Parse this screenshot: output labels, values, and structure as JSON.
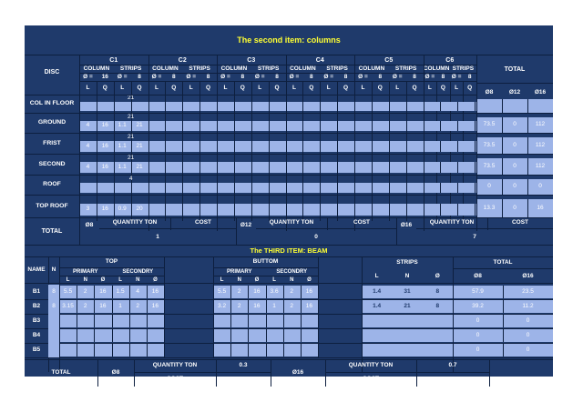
{
  "section1": {
    "title": "The second  item: columns",
    "disc_label": "DISC",
    "total_label": "TOTAL",
    "col_groups": [
      "C1",
      "C2",
      "C3",
      "C4",
      "C5",
      "C6"
    ],
    "column_label": "COLUMN",
    "strips_label": "STRIPS",
    "dia_label": "Ø =",
    "dia_values": [
      [
        "16",
        "8"
      ],
      [
        "8",
        "8"
      ],
      [
        "8",
        "8"
      ],
      [
        "8",
        "8"
      ],
      [
        "8",
        "8"
      ],
      [
        "8",
        "8"
      ]
    ],
    "lq_labels": [
      "L",
      "Q",
      "L",
      "Q"
    ],
    "total_headers": [
      "Ø8",
      "Ø12",
      "Ø16"
    ],
    "rows": [
      {
        "label": "COL IN FLOOR",
        "above": "21",
        "cells": [
          "",
          "",
          "",
          ""
        ],
        "totals": [
          "",
          "",
          ""
        ]
      },
      {
        "label": "GROUND",
        "above": "21",
        "cells": [
          "4",
          "16",
          "1.1",
          "21"
        ],
        "totals": [
          "73.5",
          "0",
          "112"
        ]
      },
      {
        "label": "FRIST",
        "above": "21",
        "cells": [
          "4",
          "16",
          "1.1",
          "21"
        ],
        "totals": [
          "73.5",
          "0",
          "112"
        ]
      },
      {
        "label": "SECOND",
        "above": "21",
        "cells": [
          "4",
          "16",
          "1.1",
          "21"
        ],
        "totals": [
          "73.5",
          "0",
          "112"
        ]
      },
      {
        "label": "ROOF",
        "above": "4",
        "cells": [
          "",
          "",
          "",
          ""
        ],
        "totals": [
          "0",
          "0",
          "0"
        ]
      },
      {
        "label": "TOP ROOF",
        "above": "",
        "cells": [
          "3",
          "16",
          "0.9",
          "20"
        ],
        "totals": [
          "13.3",
          "0",
          "16"
        ]
      }
    ],
    "footer": {
      "total_label": "TOTAL",
      "groups": [
        {
          "dia": "Ø8",
          "qty_label": "QUANTITY TON",
          "cost_label": "COST",
          "qty": "1"
        },
        {
          "dia": "Ø12",
          "qty_label": "QUANTITY TON",
          "cost_label": "COST",
          "qty": "0"
        },
        {
          "dia": "Ø16",
          "qty_label": "QUANTITY TON",
          "cost_label": "COST",
          "qty": "7"
        }
      ]
    }
  },
  "section2": {
    "title": "The THIRD  ITEM: BEAM",
    "name_label": "NAME",
    "n_label": "N",
    "top_label": "TOP",
    "bottom_label": "BUTTOM",
    "primary_label": "PRIMARY",
    "secondary_label": "SECONDRY",
    "lnd": [
      "L",
      "N",
      "Ø",
      "L",
      "N",
      "Ø"
    ],
    "strips_label": "STRIPS",
    "strips_cols": [
      "L",
      "N",
      "Ø"
    ],
    "total_label": "TOTAL",
    "total_cols": [
      "Ø8",
      "Ø16"
    ],
    "rows": [
      {
        "name": "B1",
        "n": "8",
        "top": [
          "5.5",
          "2",
          "16",
          "1.5",
          "4",
          "16"
        ],
        "bottom": [
          "5.5",
          "2",
          "16",
          "3.6",
          "2",
          "16"
        ],
        "strips": [
          "1.4",
          "31",
          "8"
        ],
        "totals": [
          "57.9",
          "23.5"
        ]
      },
      {
        "name": "B2",
        "n": "8",
        "top": [
          "3.15",
          "2",
          "16",
          "1",
          "2",
          "16"
        ],
        "bottom": [
          "3.2",
          "2",
          "16",
          "1",
          "2",
          "16"
        ],
        "strips": [
          "1.4",
          "21",
          "8"
        ],
        "totals": [
          "39.2",
          "11.2"
        ]
      },
      {
        "name": "B3",
        "n": "",
        "top": [
          "",
          "",
          "",
          "",
          "",
          ""
        ],
        "bottom": [
          "",
          "",
          "",
          "",
          "",
          ""
        ],
        "strips": [
          "",
          "",
          ""
        ],
        "totals": [
          "0",
          "0"
        ]
      },
      {
        "name": "B4",
        "n": "",
        "top": [
          "",
          "",
          "",
          "",
          "",
          ""
        ],
        "bottom": [
          "",
          "",
          "",
          "",
          "",
          ""
        ],
        "strips": [
          "",
          "",
          ""
        ],
        "totals": [
          "0",
          "0"
        ]
      },
      {
        "name": "B5",
        "n": "",
        "top": [
          "",
          "",
          "",
          "",
          "",
          ""
        ],
        "bottom": [
          "",
          "",
          "",
          "",
          "",
          ""
        ],
        "strips": [
          "",
          "",
          ""
        ],
        "totals": [
          "0",
          "0"
        ]
      }
    ],
    "footer": {
      "total_label": "TOTAL",
      "d8": "Ø8",
      "d16": "Ø16",
      "qty_label": "QUANTITY TON",
      "cost_label": "COST",
      "qty_d8": "0.3",
      "qty_d16": "0.7"
    }
  }
}
